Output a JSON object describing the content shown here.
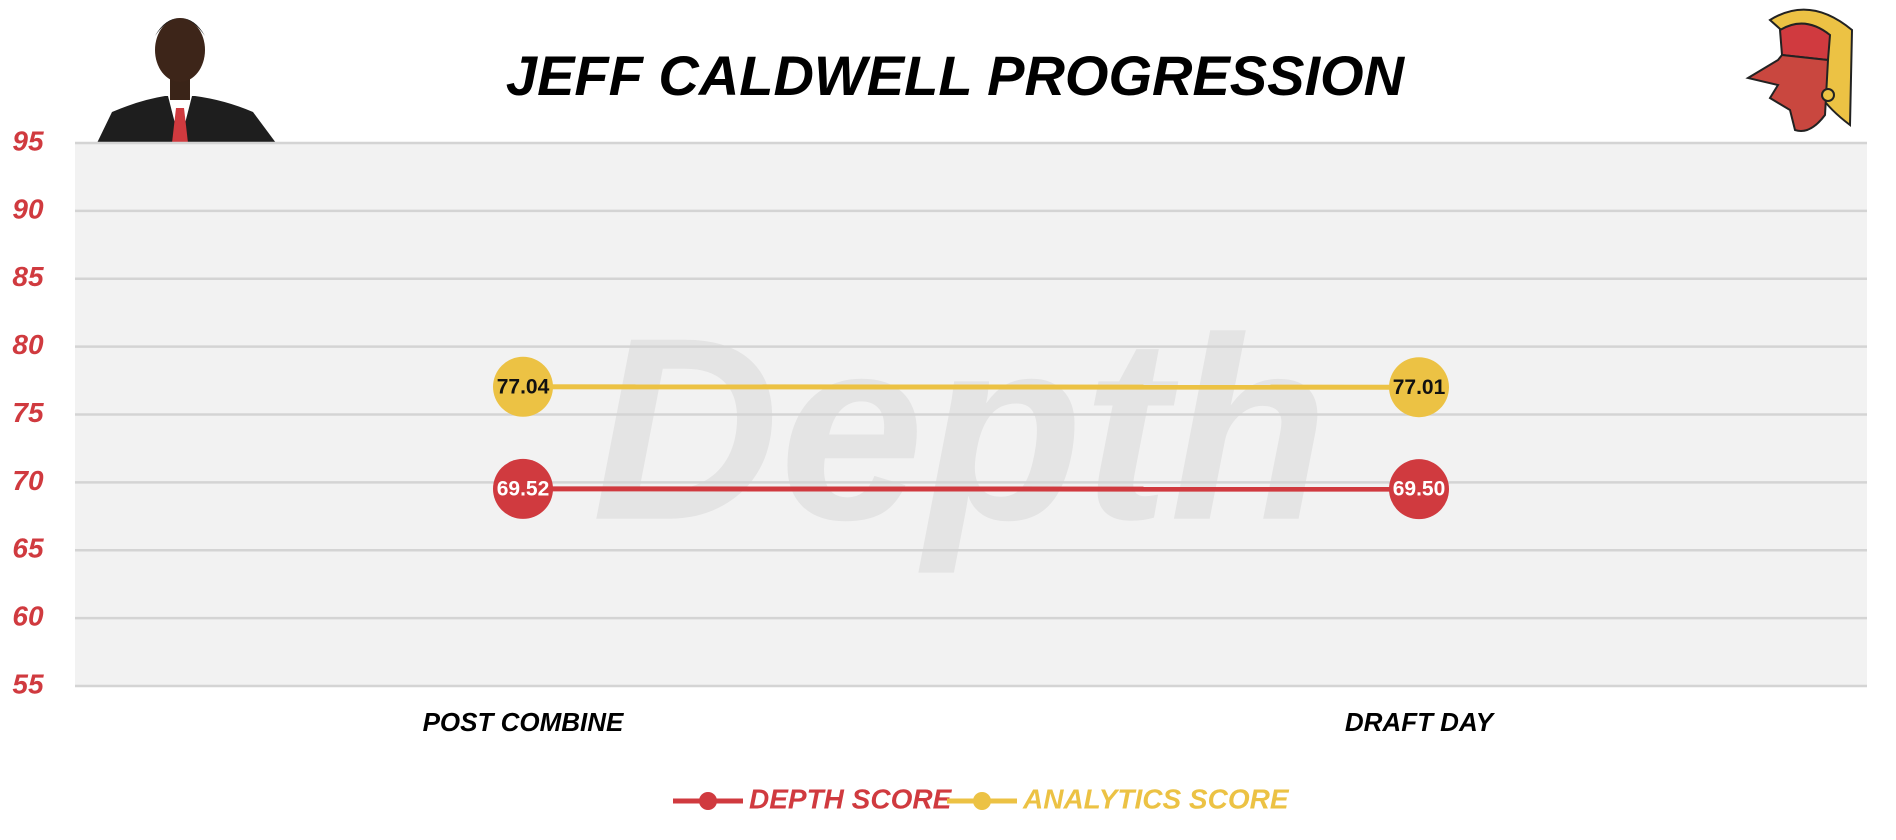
{
  "chart_data": {
    "type": "line",
    "title": "JEFF CALDWELL PROGRESSION",
    "watermark": "Depth",
    "categories": [
      "POST COMBINE",
      "DRAFT DAY"
    ],
    "series": [
      {
        "name": "DEPTH SCORE",
        "color": "#d03a3f",
        "values": [
          69.52,
          69.5
        ],
        "value_labels": [
          "69.52",
          "69.50"
        ]
      },
      {
        "name": "ANALYTICS SCORE",
        "color": "#ecc244",
        "values": [
          77.04,
          77.01
        ],
        "value_labels": [
          "77.04",
          "77.01"
        ]
      }
    ],
    "ylim": [
      55,
      95
    ],
    "yticks": [
      55,
      60,
      65,
      70,
      75,
      80,
      85,
      90,
      95
    ],
    "grid": true,
    "tick_color": "#d03a3f"
  }
}
